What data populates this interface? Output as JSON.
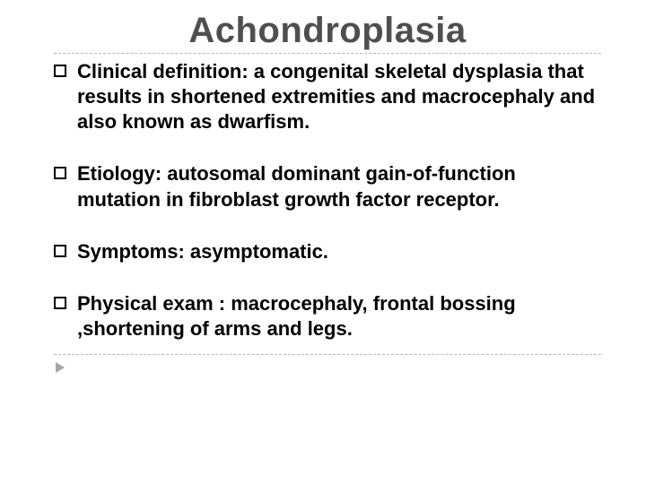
{
  "title": "Achondroplasia",
  "title_color": "#4f4f4f",
  "title_fontsize": 40,
  "body_fontsize": 22,
  "body_color": "#000000",
  "divider_color": "#b7b7b7",
  "arrow_color": "#a6a6a6",
  "background_color": "#ffffff",
  "bullets": [
    "Clinical definition: a congenital skeletal dysplasia that results in shortened extremities and macrocephaly and also known as dwarfism.",
    "Etiology: autosomal dominant gain-of-function mutation in fibroblast growth factor receptor.",
    "Symptoms: asymptomatic.",
    "Physical exam : macrocephaly, frontal bossing ,shortening of arms and legs."
  ]
}
